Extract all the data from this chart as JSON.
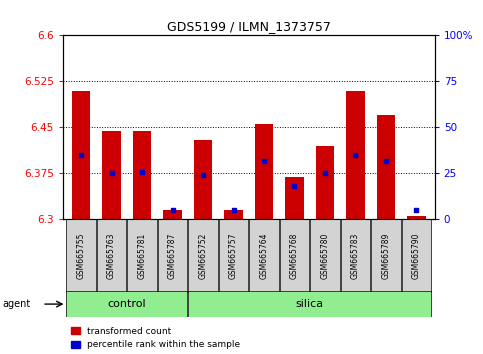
{
  "title": "GDS5199 / ILMN_1373757",
  "samples": [
    "GSM665755",
    "GSM665763",
    "GSM665781",
    "GSM665787",
    "GSM665752",
    "GSM665757",
    "GSM665764",
    "GSM665768",
    "GSM665780",
    "GSM665783",
    "GSM665789",
    "GSM665790"
  ],
  "groups": [
    "control",
    "control",
    "control",
    "control",
    "silica",
    "silica",
    "silica",
    "silica",
    "silica",
    "silica",
    "silica",
    "silica"
  ],
  "transformed_count": [
    6.51,
    6.445,
    6.445,
    6.315,
    6.43,
    6.315,
    6.455,
    6.37,
    6.42,
    6.51,
    6.47,
    6.305
  ],
  "percentile_rank": [
    35,
    25,
    26,
    5,
    24,
    5,
    32,
    18,
    25,
    35,
    32,
    5
  ],
  "ylim_left": [
    6.3,
    6.6
  ],
  "ylim_right": [
    0,
    100
  ],
  "yticks_left": [
    6.3,
    6.375,
    6.45,
    6.525,
    6.6
  ],
  "yticks_right": [
    0,
    25,
    50,
    75,
    100
  ],
  "ytick_labels_left": [
    "6.3",
    "6.375",
    "6.45",
    "6.525",
    "6.6"
  ],
  "ytick_labels_right": [
    "0",
    "25",
    "50",
    "75",
    "100%"
  ],
  "bar_color": "#cc0000",
  "dot_color": "#0000cc",
  "baseline": 6.3,
  "group_bg": "#90ee90",
  "sample_bg": "#d3d3d3",
  "legend_items": [
    {
      "label": "transformed count",
      "color": "#cc0000"
    },
    {
      "label": "percentile rank within the sample",
      "color": "#0000cc"
    }
  ],
  "agent_label": "agent",
  "control_count": 4,
  "n_samples": 12
}
